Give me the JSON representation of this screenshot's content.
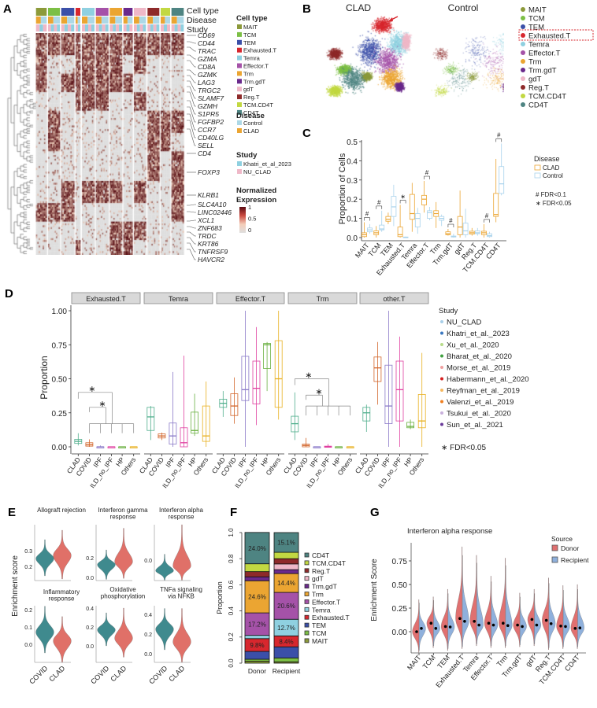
{
  "cell_types": [
    {
      "name": "MAIT",
      "color": "#8c9a3a"
    },
    {
      "name": "TCM",
      "color": "#7cbf45"
    },
    {
      "name": "TEM",
      "color": "#3b4fa8"
    },
    {
      "name": "Exhausted.T",
      "color": "#d7272e"
    },
    {
      "name": "Temra",
      "color": "#8fd0e0"
    },
    {
      "name": "Effector.T",
      "color": "#a552a8"
    },
    {
      "name": "Trm",
      "color": "#eba532"
    },
    {
      "name": "Trm.gdT",
      "color": "#6a2a8c"
    },
    {
      "name": "gdT",
      "color": "#efb8c8"
    },
    {
      "name": "Reg.T",
      "color": "#8e2a2a"
    },
    {
      "name": "TCM.CD4T",
      "color": "#c2d842"
    },
    {
      "name": "CD4T",
      "color": "#4e8482"
    }
  ],
  "panel_labels": {
    "A": "A",
    "B": "B",
    "C": "C",
    "D": "D",
    "E": "E",
    "F": "F",
    "G": "G"
  },
  "chart_data": [
    {
      "panel": "A",
      "type": "heatmap",
      "annotation_rows": [
        "Cell type",
        "Disease",
        "Study"
      ],
      "genes": [
        "CD69",
        "CD44",
        "TRAC",
        "GZMA",
        "CD8A",
        "GZMK",
        "LAG3",
        "TRGC2",
        "SLAMF7",
        "GZMH",
        "S1PR5",
        "FGFBP2",
        "CCR7",
        "CD40LG",
        "SELL",
        "CD4",
        "FOXP3",
        "KLRB1",
        "SLC4A10",
        "LINC02446",
        "XCL1",
        "ZNF683",
        "TRDC",
        "KRT86",
        "TNFRSF9",
        "HAVCR2"
      ],
      "legend": {
        "cell_type_title": "Cell type",
        "disease_title": "Disease",
        "disease_items": [
          {
            "name": "Control",
            "color": "#add8e6"
          },
          {
            "name": "CLAD",
            "color": "#eba532"
          }
        ],
        "study_title": "Study",
        "study_items": [
          {
            "name": "Khatri_et_al_2023",
            "color": "#8fd0e0"
          },
          {
            "name": "NU_CLAD",
            "color": "#efb8c8"
          }
        ],
        "expr_title": [
          "Normalized",
          "Expression"
        ],
        "expr_ticks": [
          "1",
          "0.5",
          "0"
        ],
        "expr_range": [
          0,
          1
        ],
        "gradient": [
          "#dedede",
          "#f4cdb8",
          "#cc4a40",
          "#5a0a12"
        ]
      }
    },
    {
      "panel": "B",
      "type": "scatter",
      "titles": [
        "CLAD",
        "Control"
      ],
      "highlighted": "Exhausted.T",
      "arrow_color": "#d7272e"
    },
    {
      "panel": "C",
      "type": "box",
      "ylabel": "Proportion of Cells",
      "ylim": [
        0,
        0.5
      ],
      "yticks": [
        "0.0",
        "0.1",
        "0.2",
        "0.3",
        "0.4",
        "0.5"
      ],
      "legend_title": "Disease",
      "series": [
        {
          "name": "CLAD",
          "color": "#eba532"
        },
        {
          "name": "Control",
          "color": "#a9d3ec"
        }
      ],
      "notes": [
        "# FDR<0.1",
        "∗ FDR<0.05"
      ],
      "categories": [
        "MAIT",
        "TCM",
        "TEM",
        "Exhausted.T",
        "Temra",
        "Effector.T",
        "Trm",
        "Trm.gdT",
        "gdT",
        "Reg.T",
        "TCM.CD4T",
        "CD4T"
      ],
      "box_stats_order": [
        "min",
        "q1",
        "median",
        "q3",
        "max"
      ],
      "CLAD": [
        [
          0,
          0.005,
          0.015,
          0.025,
          0.08
        ],
        [
          0,
          0.015,
          0.025,
          0.035,
          0.06
        ],
        [
          0.07,
          0.085,
          0.095,
          0.11,
          0.13
        ],
        [
          0,
          0.005,
          0.015,
          0.055,
          0.17
        ],
        [
          0.03,
          0.095,
          0.125,
          0.225,
          0.285
        ],
        [
          0.13,
          0.17,
          0.2,
          0.22,
          0.295
        ],
        [
          0.05,
          0.11,
          0.125,
          0.14,
          0.185
        ],
        [
          0.01,
          0.015,
          0.02,
          0.03,
          0.045
        ],
        [
          0,
          0.015,
          0.055,
          0.11,
          0.245
        ],
        [
          0.01,
          0.018,
          0.025,
          0.033,
          0.05
        ],
        [
          0,
          0.015,
          0.025,
          0.033,
          0.07
        ],
        [
          0.08,
          0.11,
          0.12,
          0.23,
          0.41
        ]
      ],
      "Control": [
        [
          0.02,
          0.03,
          0.04,
          0.05,
          0.07
        ],
        [
          0.03,
          0.04,
          0.045,
          0.065,
          0.14
        ],
        [
          0.06,
          0.11,
          0.16,
          0.215,
          0.275
        ],
        [
          0,
          0,
          0,
          0.003,
          0.005
        ],
        [
          0.02,
          0.055,
          0.1,
          0.125,
          0.155
        ],
        [
          0.09,
          0.1,
          0.13,
          0.14,
          0.16
        ],
        [
          0.06,
          0.09,
          0.1,
          0.11,
          0.12
        ],
        [
          0,
          0.003,
          0.005,
          0.008,
          0.02
        ],
        [
          0,
          0.015,
          0.035,
          0.075,
          0.15
        ],
        [
          0.01,
          0.02,
          0.025,
          0.035,
          0.05
        ],
        [
          0,
          0.005,
          0.01,
          0.02,
          0.03
        ],
        [
          0.22,
          0.23,
          0.28,
          0.37,
          0.49
        ]
      ],
      "significance": {
        "MAIT": "#",
        "TCM": "#",
        "Exhausted.T": "∗",
        "Effector.T": "#",
        "Trm.gdT": "#",
        "TCM.CD4T": "#",
        "CD4T": "#"
      }
    },
    {
      "panel": "D",
      "type": "box",
      "ylabel": "Proportion",
      "ylim": [
        0,
        1
      ],
      "yticks": [
        "0.00",
        "0.25",
        "0.50",
        "0.75",
        "1.00"
      ],
      "facets": [
        "Exhausted.T",
        "Temra",
        "Effector.T",
        "Trm",
        "other.T"
      ],
      "categories": [
        "CLAD",
        "COVID",
        "IPF",
        "ILD_no_IPF",
        "HP",
        "Others"
      ],
      "category_colors": [
        "#4fae8c",
        "#d2652a",
        "#8a7ac8",
        "#e040a0",
        "#6ab040",
        "#e8b020"
      ],
      "box_stats_order": [
        "min",
        "q1",
        "median",
        "q3",
        "max"
      ],
      "values": {
        "Exhausted.T": [
          [
            0.01,
            0.025,
            0.04,
            0.055,
            0.1
          ],
          [
            0,
            0.005,
            0.015,
            0.03,
            0.055
          ],
          [
            0,
            0,
            0,
            0,
            0.01
          ],
          [
            0,
            0,
            0,
            0,
            0
          ],
          [
            0,
            0,
            0,
            0,
            0
          ],
          [
            0,
            0,
            0,
            0,
            0
          ]
        ],
        "Temra": [
          [
            0.05,
            0.12,
            0.22,
            0.29,
            0.3
          ],
          [
            0.05,
            0.065,
            0.08,
            0.095,
            0.105
          ],
          [
            0,
            0.02,
            0.08,
            0.175,
            0.55
          ],
          [
            0,
            0,
            0.03,
            0.14,
            0.67
          ],
          [
            0.08,
            0.1,
            0.12,
            0.255,
            0.39
          ],
          [
            0,
            0.04,
            0.08,
            0.3,
            0.48
          ]
        ],
        "Effector.T": [
          [
            0.22,
            0.29,
            0.32,
            0.35,
            0.41
          ],
          [
            0.17,
            0.23,
            0.3,
            0.39,
            0.51
          ],
          [
            0,
            0.34,
            0.42,
            0.665,
            1
          ],
          [
            0.16,
            0.315,
            0.43,
            0.63,
            0.88
          ],
          [
            0.41,
            0.575,
            0.75,
            0.76,
            0.77
          ],
          [
            0.2,
            0.29,
            0.5,
            0.78,
            1
          ]
        ],
        "Trm": [
          [
            0.05,
            0.11,
            0.17,
            0.225,
            0.4
          ],
          [
            0,
            0,
            0.01,
            0.02,
            0.065
          ],
          [
            0,
            0,
            0,
            0,
            0
          ],
          [
            0,
            0,
            0,
            0.005,
            0.02
          ],
          [
            0,
            0,
            0,
            0,
            0
          ],
          [
            0,
            0,
            0,
            0,
            0
          ]
        ],
        "other.T": [
          [
            0.11,
            0.19,
            0.25,
            0.29,
            0.31
          ],
          [
            0.31,
            0.48,
            0.58,
            0.66,
            0.77
          ],
          [
            0,
            0.17,
            0.3,
            0.6,
            1
          ],
          [
            0,
            0.19,
            0.42,
            0.63,
            0.81
          ],
          [
            0.13,
            0.14,
            0.15,
            0.18,
            0.2
          ],
          [
            0,
            0.14,
            0.19,
            0.385,
            0.69
          ]
        ]
      },
      "significance_facets": [
        "Exhausted.T",
        "Trm"
      ],
      "legend_title": "Study",
      "studies": [
        {
          "name": "NU_CLAD",
          "color": "#a8cfe8"
        },
        {
          "name": "Khatri_et_al._2023",
          "color": "#3a78c0"
        },
        {
          "name": "Xu_et_al._2020",
          "color": "#b8dc8a"
        },
        {
          "name": "Bharat_et_al._2020",
          "color": "#40a040"
        },
        {
          "name": "Morse_et_al._2019",
          "color": "#f0a0a0"
        },
        {
          "name": "Habermann_et_al._2020",
          "color": "#d62020"
        },
        {
          "name": "Reyfman_et_al._2019",
          "color": "#f5b860"
        },
        {
          "name": "Valenzi_et_al._2019",
          "color": "#f07f20"
        },
        {
          "name": "Tsukui_et_al._2020",
          "color": "#c8b0dc"
        },
        {
          "name": "Sun_et_al._2021",
          "color": "#6a3a9a"
        }
      ],
      "note": "∗ FDR<0.05"
    },
    {
      "panel": "E",
      "type": "violin",
      "ylabel": "Enrichment score",
      "groups": [
        {
          "name": "COVID",
          "color": "#3f8a8e"
        },
        {
          "name": "CLAD",
          "color": "#e07068"
        }
      ],
      "violin_stats_order": [
        "min",
        "median",
        "max"
      ],
      "subplots": [
        {
          "title": [
            "Allograft rejection"
          ],
          "yticks": [
            "0.3",
            "0.2"
          ],
          "COVID": [
            0.14,
            0.25,
            0.37
          ],
          "CLAD": [
            0.12,
            0.27,
            0.43
          ]
        },
        {
          "title": [
            "Interferon gamma",
            "response"
          ],
          "yticks": [
            "0.2",
            "0.0"
          ],
          "COVID": [
            -0.02,
            0.13,
            0.28
          ],
          "CLAD": [
            -0.01,
            0.16,
            0.5
          ]
        },
        {
          "title": [
            "Interferon alpha",
            "response"
          ],
          "yticks": [
            "0.0"
          ],
          "COVID": [
            -0.17,
            -0.09,
            0.05
          ],
          "CLAD": [
            -0.17,
            -0.05,
            0.3
          ]
        },
        {
          "title": [
            "Inflammatory",
            "response"
          ],
          "yticks": [
            "0.2",
            "0.1",
            "0.0"
          ],
          "COVID": [
            -0.05,
            0.07,
            0.22
          ],
          "CLAD": [
            -0.11,
            0.02,
            0.16
          ]
        },
        {
          "title": [
            "Oxidative",
            "phosphorylation"
          ],
          "yticks": [
            "0.4",
            "0.2",
            "0.0"
          ],
          "COVID": [
            0.0,
            0.17,
            0.35
          ],
          "CLAD": [
            -0.12,
            0.08,
            0.4
          ]
        },
        {
          "title": [
            "TNFa signaling",
            "via NFKB"
          ],
          "yticks": [
            "0.4",
            "0.2",
            "0.0"
          ],
          "COVID": [
            0.04,
            0.25,
            0.46
          ],
          "CLAD": [
            -0.09,
            0.12,
            0.46
          ]
        }
      ]
    },
    {
      "panel": "F",
      "type": "bar",
      "stacked": true,
      "ylabel": "Proportion",
      "ylim": [
        0,
        1
      ],
      "yticks": [
        "0.0",
        "0.2",
        "0.4",
        "0.6",
        "0.8",
        "1.0"
      ],
      "categories": [
        "Donor",
        "Recipient"
      ],
      "stack_order": [
        "MAIT",
        "TCM",
        "TEM",
        "Exhausted.T",
        "Temra",
        "Effector.T",
        "Trm",
        "Trm.gdT",
        "gdT",
        "Reg.T",
        "TCM.CD4T",
        "CD4T"
      ],
      "Donor": [
        0.015,
        0.015,
        0.06,
        0.098,
        0.025,
        0.172,
        0.246,
        0.03,
        0.0,
        0.04,
        0.06,
        0.24
      ],
      "Recipient": [
        0.01,
        0.03,
        0.085,
        0.084,
        0.127,
        0.206,
        0.144,
        0.03,
        0.044,
        0.04,
        0.049,
        0.151
      ],
      "data_labels": {
        "Donor": {
          "Exhausted.T": "9.8%",
          "Effector.T": "17.2%",
          "Trm": "24.6%",
          "CD4T": "24.0%"
        },
        "Recipient": {
          "Exhausted.T": "8.4%",
          "Temra": "12.7%",
          "Effector.T": "20.6%",
          "Trm": "14.4%",
          "CD4T": "15.1%"
        }
      }
    },
    {
      "panel": "G",
      "type": "violin",
      "split": true,
      "title": "Interferon alpha response",
      "ylabel": "Enrichment Score",
      "yticks": [
        "0.00",
        "0.25",
        "0.50",
        "0.75"
      ],
      "legend_title": "Source",
      "series": [
        {
          "name": "Donor",
          "color": "#e07070"
        },
        {
          "name": "Recipient",
          "color": "#8fb0dc"
        }
      ],
      "categories": [
        "MAIT",
        "TCM",
        "TEM",
        "Exhausted.T",
        "Temra",
        "Effector.T",
        "Trm",
        "Trm.gdT",
        "gdT",
        "Reg.T",
        "TCM.CD4T",
        "CD4T"
      ],
      "Donor_mean": [
        0.0,
        0.09,
        0.055,
        0.14,
        0.11,
        0.09,
        0.09,
        0.07,
        0.13,
        0.12,
        0.06,
        0.035
      ],
      "Recipient_mean": [
        0.035,
        0.035,
        0.05,
        0.11,
        0.07,
        0.07,
        0.065,
        0.055,
        0.07,
        0.085,
        0.055,
        0.04
      ],
      "max": [
        0.34,
        0.37,
        0.45,
        0.9,
        0.81,
        0.59,
        0.78,
        0.41,
        0.45,
        0.57,
        0.49,
        0.5
      ],
      "min": [
        -0.22,
        -0.17,
        -0.2,
        -0.18,
        -0.15,
        -0.17,
        -0.17,
        -0.16,
        -0.15,
        -0.19,
        -0.18,
        -0.18
      ]
    }
  ]
}
